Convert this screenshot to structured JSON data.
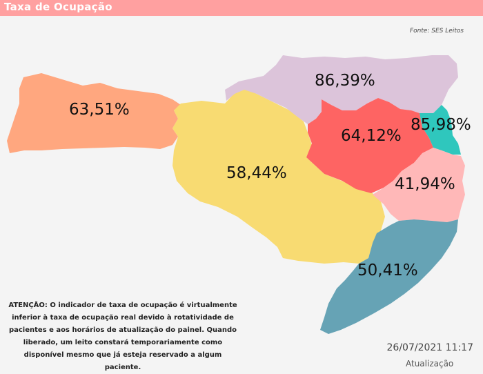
{
  "header": {
    "title": "Taxa de Ocupação"
  },
  "source": "Fonte: SES Leitos",
  "colors": {
    "header": "#ffa0a0",
    "region_west": "#ffa77f",
    "region_central": "#f8db72",
    "region_northeast": "#dcc4da",
    "region_midwest": "#fe6463",
    "region_coast_north": "#2fc7bd",
    "region_coast_central": "#ffb8b8",
    "region_south": "#66a3b5"
  },
  "regions": [
    {
      "id": "west",
      "rate": "63,51%"
    },
    {
      "id": "central",
      "rate": "58,44%"
    },
    {
      "id": "northeast",
      "rate": "86,39%"
    },
    {
      "id": "midwest",
      "rate": "64,12%"
    },
    {
      "id": "coast_north",
      "rate": "85,98%"
    },
    {
      "id": "coast_central",
      "rate": "41,94%"
    },
    {
      "id": "south",
      "rate": "50,41%"
    }
  ],
  "notice": "ATENÇÃO: O indicador de taxa de ocupação é virtualmente inferior à taxa de ocupação real devido à rotatividade de pacientes e aos horários de atualização do painel.  Quando liberado, um leito constará temporariamente como disponível mesmo que já esteja reservado a algum paciente.",
  "updated": {
    "timestamp": "26/07/2021 11:17",
    "label": "Atualização"
  }
}
